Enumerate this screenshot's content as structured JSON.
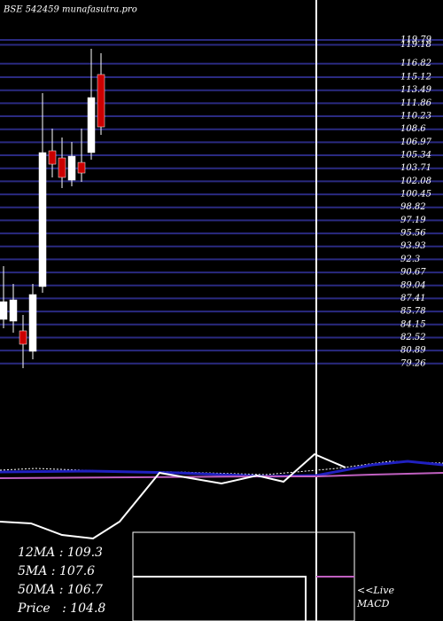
{
  "chart_data": {
    "type": "candlestick",
    "title": "BSE 542459 munafasutra.pro",
    "categories": [
      null,
      null,
      null,
      null,
      null,
      null,
      null,
      null,
      null,
      null,
      null
    ],
    "open": [
      84.79,
      84.57,
      83.35,
      80.79,
      88.9,
      105.9,
      105.01,
      102.23,
      104.45,
      105.68,
      115.46
    ],
    "high": [
      91.46,
      89.23,
      85.35,
      89.23,
      113.12,
      108.68,
      107.57,
      107.01,
      108.68,
      118.68,
      118.12
    ],
    "low": [
      83.68,
      83.12,
      78.68,
      79.79,
      88.12,
      102.57,
      101.23,
      101.46,
      102.01,
      104.79,
      107.9
    ],
    "close": [
      87.01,
      87.23,
      81.68,
      87.9,
      105.68,
      104.23,
      102.57,
      105.23,
      103.12,
      112.57,
      108.9
    ],
    "up_color": "#ffffff",
    "down_color": "#cc0000",
    "ylim": [
      78.68,
      119.79
    ],
    "yticks": [
      119.79,
      119.18,
      116.82,
      115.12,
      113.49,
      111.86,
      110.23,
      108.6,
      106.97,
      105.34,
      103.71,
      102.08,
      100.45,
      98.82,
      97.19,
      95.56,
      93.93,
      92.3,
      90.67,
      89.04,
      87.41,
      85.78,
      84.15,
      82.52,
      80.89,
      79.26
    ],
    "grid": true,
    "grid_color": "#2a2a80",
    "annotations": [
      "12MA : 109.3",
      "5MA : 107.6",
      "50MA : 106.7",
      "Price   : 104.8"
    ],
    "live_label": "<<Live",
    "macd_label": "MACD"
  }
}
